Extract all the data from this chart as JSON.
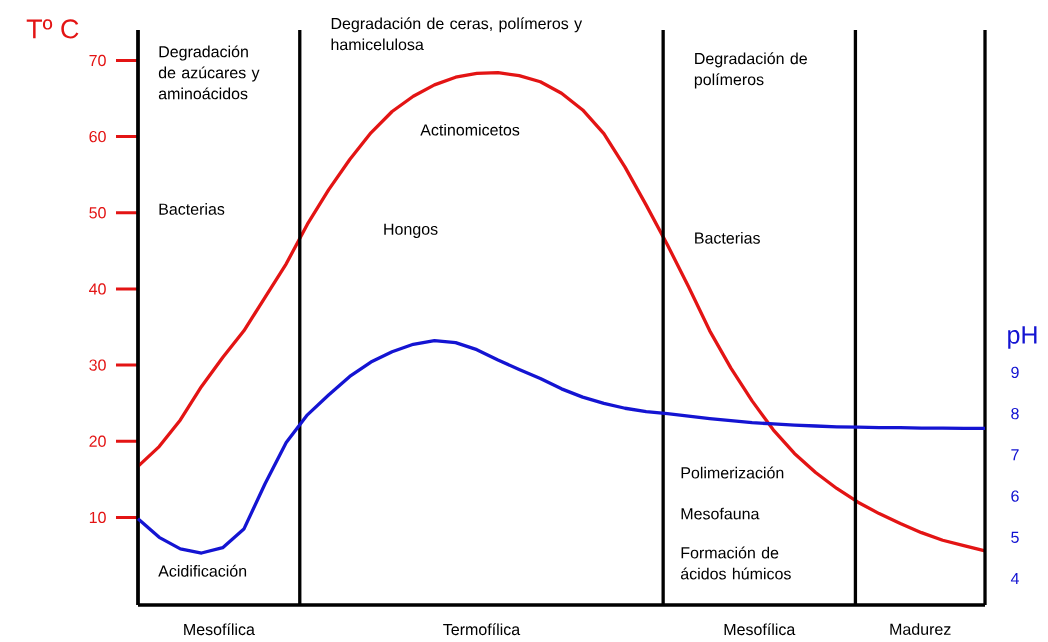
{
  "chart_data": {
    "type": "line",
    "ylabel": "Tº C",
    "y2label": "pH",
    "categories": [
      null,
      null,
      null,
      null,
      null,
      null,
      null,
      null,
      null,
      null,
      null,
      null,
      null,
      null,
      null,
      null,
      null,
      null,
      null,
      null,
      null,
      null,
      null,
      null,
      null,
      null,
      null,
      null,
      null,
      null,
      null,
      null,
      null,
      null,
      null,
      null,
      null,
      null,
      null,
      null,
      null
    ],
    "ylim": [
      -1.5,
      74
    ],
    "yticks": [
      10,
      20,
      30,
      40,
      50,
      60,
      70
    ],
    "y2lim": [
      3.36,
      17.3
    ],
    "y2ticks": [
      4,
      5,
      6,
      7,
      8,
      9
    ],
    "series": [
      {
        "color": "#e31414",
        "values": [
          16.7,
          19.3,
          22.8,
          27.2,
          31.0,
          34.5,
          38.9,
          43.3,
          48.5,
          53.0,
          57.0,
          60.5,
          63.3,
          65.3,
          66.8,
          67.8,
          68.3,
          68.4,
          68.0,
          67.2,
          65.7,
          63.5,
          60.4,
          56.0,
          51.0,
          45.8,
          40.3,
          34.5,
          29.6,
          25.3,
          21.5,
          18.4,
          15.9,
          13.8,
          12.0,
          10.5,
          9.2,
          8.0,
          7.0,
          6.3,
          5.6
        ]
      },
      {
        "color": "#1414d2",
        "axis": "y2",
        "values": [
          5.45,
          5.0,
          4.72,
          4.62,
          4.75,
          5.2,
          6.3,
          7.3,
          7.97,
          8.45,
          8.9,
          9.25,
          9.5,
          9.68,
          9.77,
          9.72,
          9.55,
          9.3,
          9.07,
          8.85,
          8.6,
          8.4,
          8.25,
          8.13,
          8.05,
          8.0,
          7.94,
          7.88,
          7.83,
          7.78,
          7.75,
          7.72,
          7.7,
          7.68,
          7.67,
          7.66,
          7.66,
          7.65,
          7.65,
          7.64,
          7.64
        ]
      }
    ],
    "annotations": [
      "Degradación de azúcares y aminoácidos",
      "Bacterias",
      "Acidificación",
      "Degradación de ceras, polímeros y hamicelulosa",
      "Actinomicetos",
      "Hongos",
      "Degradación de polímeros",
      "Bacterias",
      "Polimerización",
      "Mesofauna",
      "Formación de ácidos húmicos",
      "Mesofílica",
      "Termofílica",
      "Mesofílica",
      "Madurez"
    ]
  }
}
